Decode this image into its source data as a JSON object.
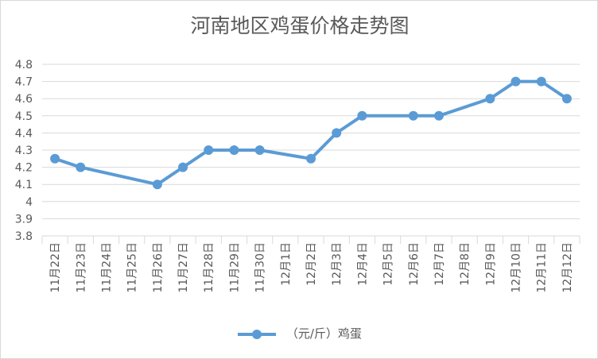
{
  "chart_data": {
    "type": "line",
    "title": "河南地区鸡蛋价格走势图",
    "categories": [
      "11月22日",
      "11月23日",
      "11月24日",
      "11月25日",
      "11月26日",
      "11月27日",
      "11月28日",
      "11月29日",
      "11月30日",
      "12月1日",
      "12月2日",
      "12月3日",
      "12月4日",
      "12月5日",
      "12月6日",
      "12月7日",
      "12月8日",
      "12月9日",
      "12月10日",
      "12月11日",
      "12月12日"
    ],
    "series": [
      {
        "name": "（元/斤）鸡蛋",
        "color": "#5b9bd5",
        "values": [
          4.25,
          4.2,
          null,
          null,
          4.1,
          4.2,
          4.3,
          4.3,
          4.3,
          null,
          4.25,
          4.4,
          4.5,
          null,
          4.5,
          4.5,
          null,
          4.6,
          4.7,
          4.7,
          4.6
        ]
      }
    ],
    "yticks": [
      "3.8",
      "3.9",
      "4",
      "4.1",
      "4.2",
      "4.3",
      "4.4",
      "4.5",
      "4.6",
      "4.7",
      "4.8"
    ],
    "ylim": [
      3.8,
      4.8
    ],
    "grid": true,
    "legend_position": "bottom",
    "line_color": "#5b9bd5",
    "grid_color": "#d9d9d9"
  }
}
